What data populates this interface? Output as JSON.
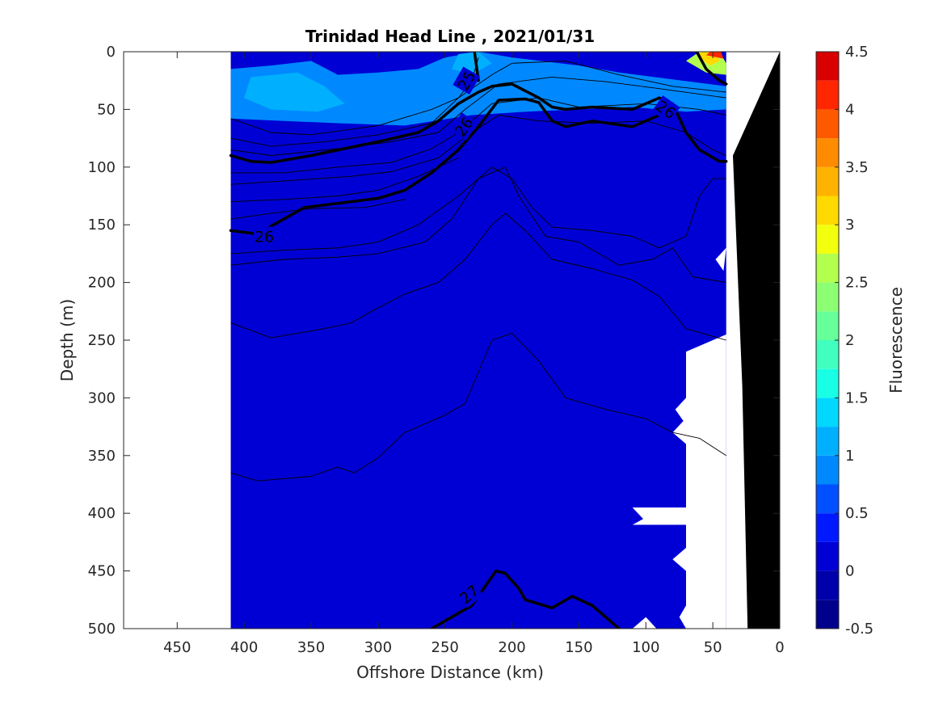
{
  "chart_data": {
    "type": "heatmap",
    "title": "Trinidad Head Line , 2021/01/31",
    "xlabel": "Offshore Distance (km)",
    "ylabel": "Depth (m)",
    "colorbar_label": "Fluorescence",
    "xlim": [
      490,
      0
    ],
    "ylim": [
      500,
      0
    ],
    "x_ticks": [
      450,
      400,
      350,
      300,
      250,
      200,
      150,
      100,
      50,
      0
    ],
    "y_ticks": [
      0,
      50,
      100,
      150,
      200,
      250,
      300,
      350,
      400,
      450,
      500
    ],
    "colorbar_ticks": [
      4.5,
      4,
      3.5,
      3,
      2.5,
      2,
      1.5,
      1,
      0.5,
      0,
      -0.5
    ],
    "colorbar_range": [
      -0.5,
      4.5
    ],
    "colorbar_levels": [
      {
        "from": -0.5,
        "to": -0.25,
        "color": "#00008c"
      },
      {
        "from": -0.25,
        "to": 0,
        "color": "#0000aa"
      },
      {
        "from": 0,
        "to": 0.25,
        "color": "#0000d4"
      },
      {
        "from": 0.25,
        "to": 0.5,
        "color": "#0019ff"
      },
      {
        "from": 0.5,
        "to": 0.75,
        "color": "#0050ff"
      },
      {
        "from": 0.75,
        "to": 1,
        "color": "#0089ff"
      },
      {
        "from": 1,
        "to": 1.25,
        "color": "#00b0ff"
      },
      {
        "from": 1.25,
        "to": 1.5,
        "color": "#00d8ff"
      },
      {
        "from": 1.5,
        "to": 1.75,
        "color": "#19ffe6"
      },
      {
        "from": 1.75,
        "to": 2,
        "color": "#40ffbf"
      },
      {
        "from": 2,
        "to": 2.25,
        "color": "#66ff99"
      },
      {
        "from": 2.25,
        "to": 2.5,
        "color": "#8cff73"
      },
      {
        "from": 2.5,
        "to": 2.75,
        "color": "#b3ff4d"
      },
      {
        "from": 2.75,
        "to": 3,
        "color": "#f2ff0d"
      },
      {
        "from": 3,
        "to": 3.25,
        "color": "#ffd900"
      },
      {
        "from": 3.25,
        "to": 3.5,
        "color": "#ffb300"
      },
      {
        "from": 3.5,
        "to": 3.75,
        "color": "#ff8c00"
      },
      {
        "from": 3.75,
        "to": 4,
        "color": "#ff5900"
      },
      {
        "from": 4,
        "to": 4.25,
        "color": "#ff2600"
      },
      {
        "from": 4.25,
        "to": 4.5,
        "color": "#d90000"
      },
      {
        "from": 4.5,
        "to": 4.75,
        "color": "#aa0000"
      }
    ],
    "data_extent": {
      "x": [
        410,
        40
      ],
      "y": [
        0,
        500
      ]
    },
    "background_value": 0.1,
    "surface_layer": {
      "value": 0.9,
      "outline": [
        [
          410,
          15
        ],
        [
          380,
          12
        ],
        [
          350,
          8
        ],
        [
          330,
          20
        ],
        [
          300,
          18
        ],
        [
          270,
          15
        ],
        [
          250,
          5
        ],
        [
          225,
          0
        ],
        [
          200,
          5
        ],
        [
          150,
          12
        ],
        [
          120,
          18
        ],
        [
          80,
          24
        ],
        [
          40,
          30
        ],
        [
          40,
          50
        ],
        [
          70,
          52
        ],
        [
          110,
          48
        ],
        [
          150,
          50
        ],
        [
          190,
          52
        ],
        [
          230,
          55
        ],
        [
          280,
          64
        ],
        [
          330,
          62
        ],
        [
          370,
          60
        ],
        [
          410,
          58
        ]
      ]
    },
    "surface_inner_patches": [
      {
        "value": 1.1,
        "outline": [
          [
            395,
            22
          ],
          [
            360,
            18
          ],
          [
            340,
            30
          ],
          [
            325,
            45
          ],
          [
            345,
            52
          ],
          [
            380,
            50
          ],
          [
            400,
            40
          ]
        ]
      },
      {
        "value": 1.1,
        "outline": [
          [
            240,
            2
          ],
          [
            225,
            0
          ],
          [
            215,
            10
          ],
          [
            230,
            20
          ],
          [
            245,
            15
          ]
        ]
      }
    ],
    "bloom_patches": [
      {
        "value": 2.7,
        "outline": [
          [
            70,
            8
          ],
          [
            60,
            0
          ],
          [
            45,
            0
          ],
          [
            40,
            10
          ],
          [
            40,
            20
          ],
          [
            55,
            18
          ]
        ]
      },
      {
        "value": 3.2,
        "outline": [
          [
            62,
            4
          ],
          [
            58,
            0
          ],
          [
            48,
            0
          ],
          [
            45,
            8
          ],
          [
            52,
            12
          ]
        ]
      },
      {
        "value": 4.1,
        "outline": [
          [
            55,
            3
          ],
          [
            52,
            0
          ],
          [
            44,
            0
          ],
          [
            42,
            6
          ]
        ]
      }
    ],
    "seafloor": [
      [
        24,
        500
      ],
      [
        28,
        290
      ],
      [
        35,
        90
      ],
      [
        0,
        0
      ],
      [
        0,
        500
      ]
    ],
    "no_data_gaps": [
      [
        [
          40,
          170
        ],
        [
          48,
          180
        ],
        [
          42,
          190
        ]
      ],
      [
        [
          40,
          245
        ],
        [
          70,
          260
        ],
        [
          70,
          500
        ],
        [
          40,
          500
        ]
      ],
      [
        [
          70,
          300
        ],
        [
          78,
          310
        ],
        [
          72,
          320
        ],
        [
          80,
          330
        ],
        [
          70,
          340
        ]
      ],
      [
        [
          110,
          395
        ],
        [
          102,
          405
        ],
        [
          110,
          410
        ],
        [
          70,
          410
        ],
        [
          70,
          395
        ]
      ],
      [
        [
          70,
          430
        ],
        [
          80,
          440
        ],
        [
          70,
          450
        ]
      ],
      [
        [
          70,
          480
        ],
        [
          75,
          490
        ],
        [
          70,
          500
        ]
      ],
      [
        [
          110,
          500
        ],
        [
          100,
          490
        ],
        [
          92,
          500
        ]
      ]
    ],
    "isopycnals_thin": [
      [
        [
          410,
          58
        ],
        [
          380,
          70
        ],
        [
          350,
          72
        ],
        [
          300,
          64
        ],
        [
          260,
          50
        ],
        [
          240,
          40
        ],
        [
          230,
          25
        ],
        [
          225,
          5
        ]
      ],
      [
        [
          410,
          75
        ],
        [
          380,
          82
        ],
        [
          340,
          78
        ],
        [
          300,
          72
        ],
        [
          260,
          62
        ],
        [
          240,
          40
        ],
        [
          215,
          20
        ],
        [
          200,
          10
        ],
        [
          160,
          8
        ],
        [
          120,
          20
        ],
        [
          80,
          30
        ],
        [
          40,
          35
        ]
      ],
      [
        [
          410,
          85
        ],
        [
          380,
          90
        ],
        [
          330,
          84
        ],
        [
          290,
          78
        ],
        [
          255,
          70
        ],
        [
          235,
          50
        ],
        [
          210,
          28
        ],
        [
          170,
          22
        ],
        [
          130,
          26
        ],
        [
          90,
          32
        ],
        [
          40,
          40
        ]
      ],
      [
        [
          410,
          105
        ],
        [
          370,
          105
        ],
        [
          330,
          100
        ],
        [
          290,
          96
        ],
        [
          260,
          84
        ],
        [
          240,
          70
        ],
        [
          215,
          45
        ],
        [
          180,
          40
        ],
        [
          150,
          48
        ],
        [
          100,
          45
        ],
        [
          60,
          50
        ],
        [
          40,
          55
        ]
      ],
      [
        [
          410,
          115
        ],
        [
          370,
          112
        ],
        [
          320,
          108
        ],
        [
          290,
          104
        ],
        [
          255,
          92
        ],
        [
          235,
          74
        ],
        [
          210,
          55
        ],
        [
          180,
          60
        ],
        [
          140,
          62
        ],
        [
          100,
          60
        ],
        [
          70,
          70
        ],
        [
          50,
          85
        ],
        [
          40,
          90
        ]
      ],
      [
        [
          410,
          130
        ],
        [
          370,
          128
        ],
        [
          330,
          125
        ],
        [
          300,
          120
        ],
        [
          270,
          108
        ],
        [
          240,
          92
        ]
      ],
      [
        [
          410,
          145
        ],
        [
          380,
          140
        ],
        [
          350,
          136
        ],
        [
          310,
          135
        ],
        [
          280,
          128
        ]
      ],
      [
        [
          410,
          175
        ],
        [
          370,
          172
        ],
        [
          330,
          170
        ],
        [
          300,
          165
        ],
        [
          270,
          150
        ],
        [
          240,
          125
        ],
        [
          215,
          100
        ],
        [
          200,
          110
        ],
        [
          185,
          135
        ],
        [
          170,
          152
        ],
        [
          140,
          155
        ],
        [
          110,
          160
        ],
        [
          90,
          170
        ],
        [
          70,
          160
        ],
        [
          60,
          125
        ],
        [
          50,
          110
        ],
        [
          40,
          110
        ]
      ],
      [
        [
          410,
          185
        ],
        [
          370,
          180
        ],
        [
          330,
          178
        ],
        [
          300,
          175
        ],
        [
          265,
          165
        ],
        [
          245,
          145
        ],
        [
          225,
          110
        ],
        [
          205,
          100
        ],
        [
          195,
          125
        ],
        [
          175,
          160
        ],
        [
          150,
          165
        ],
        [
          120,
          185
        ],
        [
          95,
          180
        ],
        [
          80,
          170
        ],
        [
          65,
          195
        ],
        [
          40,
          200
        ]
      ],
      [
        [
          410,
          235
        ],
        [
          380,
          248
        ],
        [
          340,
          240
        ],
        [
          320,
          235
        ],
        [
          305,
          225
        ],
        [
          280,
          210
        ],
        [
          255,
          200
        ],
        [
          235,
          180
        ],
        [
          215,
          150
        ],
        [
          205,
          140
        ],
        [
          190,
          155
        ],
        [
          170,
          180
        ],
        [
          140,
          188
        ],
        [
          110,
          198
        ],
        [
          90,
          212
        ],
        [
          70,
          240
        ],
        [
          40,
          250
        ]
      ],
      [
        [
          410,
          365
        ],
        [
          390,
          372
        ],
        [
          350,
          368
        ],
        [
          330,
          360
        ],
        [
          318,
          365
        ],
        [
          300,
          352
        ],
        [
          280,
          330
        ],
        [
          250,
          315
        ],
        [
          235,
          305
        ],
        [
          215,
          250
        ],
        [
          200,
          244
        ],
        [
          180,
          268
        ],
        [
          160,
          300
        ],
        [
          130,
          310
        ],
        [
          100,
          318
        ],
        [
          80,
          330
        ],
        [
          60,
          335
        ],
        [
          40,
          350
        ]
      ]
    ],
    "isopycnals_bold": [
      {
        "label": "25",
        "points": [
          [
            225,
            25
          ],
          [
            228,
            0
          ]
        ]
      },
      {
        "label": "25",
        "points": [
          [
            62,
            0
          ],
          [
            55,
            15
          ],
          [
            45,
            25
          ],
          [
            40,
            28
          ]
        ]
      },
      {
        "label": "26",
        "points": [
          [
            410,
            90
          ],
          [
            395,
            95
          ],
          [
            380,
            96
          ],
          [
            350,
            90
          ],
          [
            300,
            78
          ],
          [
            270,
            70
          ],
          [
            255,
            60
          ],
          [
            240,
            45
          ],
          [
            225,
            35
          ],
          [
            215,
            30
          ],
          [
            200,
            28
          ],
          [
            180,
            40
          ],
          [
            170,
            48
          ],
          [
            160,
            50
          ],
          [
            140,
            48
          ],
          [
            110,
            50
          ],
          [
            90,
            40
          ],
          [
            80,
            45
          ],
          [
            70,
            70
          ],
          [
            60,
            85
          ],
          [
            45,
            95
          ],
          [
            40,
            95
          ]
        ]
      },
      {
        "label": "26",
        "points": [
          [
            410,
            155
          ],
          [
            390,
            158
          ],
          [
            375,
            148
          ],
          [
            355,
            135
          ],
          [
            320,
            130
          ],
          [
            300,
            127
          ],
          [
            280,
            120
          ],
          [
            260,
            105
          ],
          [
            240,
            85
          ],
          [
            225,
            65
          ],
          [
            210,
            42
          ],
          [
            190,
            41
          ],
          [
            180,
            44
          ],
          [
            170,
            60
          ],
          [
            160,
            65
          ],
          [
            140,
            60
          ],
          [
            110,
            65
          ],
          [
            90,
            55
          ]
        ]
      },
      {
        "label": "27",
        "points": [
          [
            260,
            500
          ],
          [
            245,
            490
          ],
          [
            230,
            480
          ],
          [
            212,
            450
          ],
          [
            205,
            452
          ],
          [
            195,
            465
          ],
          [
            190,
            475
          ],
          [
            170,
            482
          ],
          [
            155,
            472
          ],
          [
            140,
            480
          ],
          [
            125,
            495
          ],
          [
            120,
            500
          ]
        ]
      }
    ],
    "contour_labels": [
      {
        "text": "25",
        "x": 234,
        "y": 25,
        "angle": -60
      },
      {
        "text": "26",
        "x": 385,
        "y": 160,
        "angle": 0
      },
      {
        "text": "26",
        "x": 236,
        "y": 65,
        "angle": -55
      },
      {
        "text": "26",
        "x": 85,
        "y": 50,
        "angle": 35
      },
      {
        "text": "27",
        "x": 232,
        "y": 470,
        "angle": -40
      }
    ]
  }
}
